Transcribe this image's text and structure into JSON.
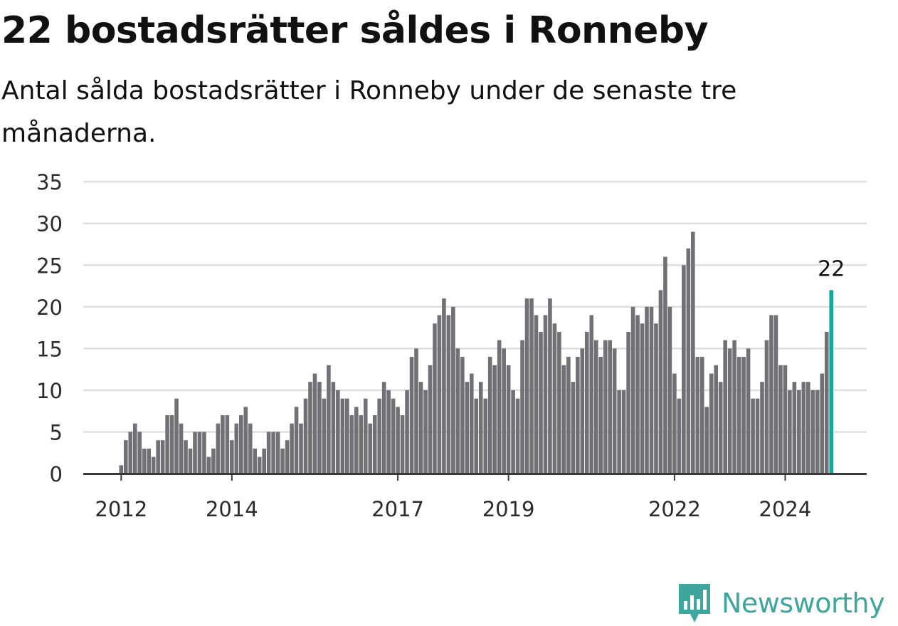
{
  "header": {
    "title": "22 bostadsrätter såldes i Ronneby",
    "subtitle": "Antal sålda bostadsrätter i Ronneby under de senaste tre månaderna."
  },
  "brand": {
    "name": "Newsworthy",
    "logo_icon": "newsworthy-bar-chart-speech-bubble-icon"
  },
  "colors": {
    "bar": "#717075",
    "highlight": "#13a89a",
    "grid": "#dedede",
    "axis": "#3a3a3a",
    "brand": "#3fa69d"
  },
  "chart_data": {
    "type": "bar",
    "x_axis": "month",
    "first_period": "2012-01",
    "xticks": [
      {
        "label": "2012",
        "index": 0
      },
      {
        "label": "2014",
        "index": 24
      },
      {
        "label": "2017",
        "index": 60
      },
      {
        "label": "2019",
        "index": 84
      },
      {
        "label": "2022",
        "index": 120
      },
      {
        "label": "2024",
        "index": 144
      }
    ],
    "yticks": [
      0,
      5,
      10,
      15,
      20,
      25,
      30,
      35
    ],
    "ylim": [
      0,
      35
    ],
    "grid": true,
    "values": [
      1,
      4,
      5,
      6,
      5,
      3,
      3,
      2,
      4,
      4,
      7,
      7,
      9,
      6,
      4,
      3,
      5,
      5,
      5,
      2,
      3,
      6,
      7,
      7,
      4,
      6,
      7,
      8,
      6,
      3,
      2,
      3,
      5,
      5,
      5,
      3,
      4,
      6,
      8,
      6,
      9,
      11,
      12,
      11,
      9,
      13,
      11,
      10,
      9,
      9,
      7,
      8,
      7,
      9,
      6,
      7,
      9,
      11,
      10,
      9,
      8,
      7,
      10,
      14,
      15,
      11,
      10,
      13,
      18,
      19,
      21,
      19,
      20,
      15,
      14,
      11,
      12,
      9,
      11,
      9,
      14,
      13,
      16,
      15,
      13,
      10,
      9,
      16,
      21,
      21,
      19,
      17,
      19,
      21,
      18,
      17,
      13,
      14,
      11,
      14,
      15,
      17,
      19,
      16,
      14,
      16,
      16,
      15,
      10,
      10,
      17,
      20,
      19,
      18,
      20,
      20,
      18,
      22,
      26,
      20,
      12,
      9,
      25,
      27,
      29,
      14,
      14,
      8,
      12,
      13,
      11,
      16,
      15,
      16,
      14,
      14,
      15,
      9,
      9,
      11,
      16,
      19,
      19,
      13,
      13,
      10,
      11,
      10,
      11,
      11,
      10,
      10,
      12,
      17,
      22
    ],
    "highlight_last": true,
    "highlight_label": "22"
  }
}
